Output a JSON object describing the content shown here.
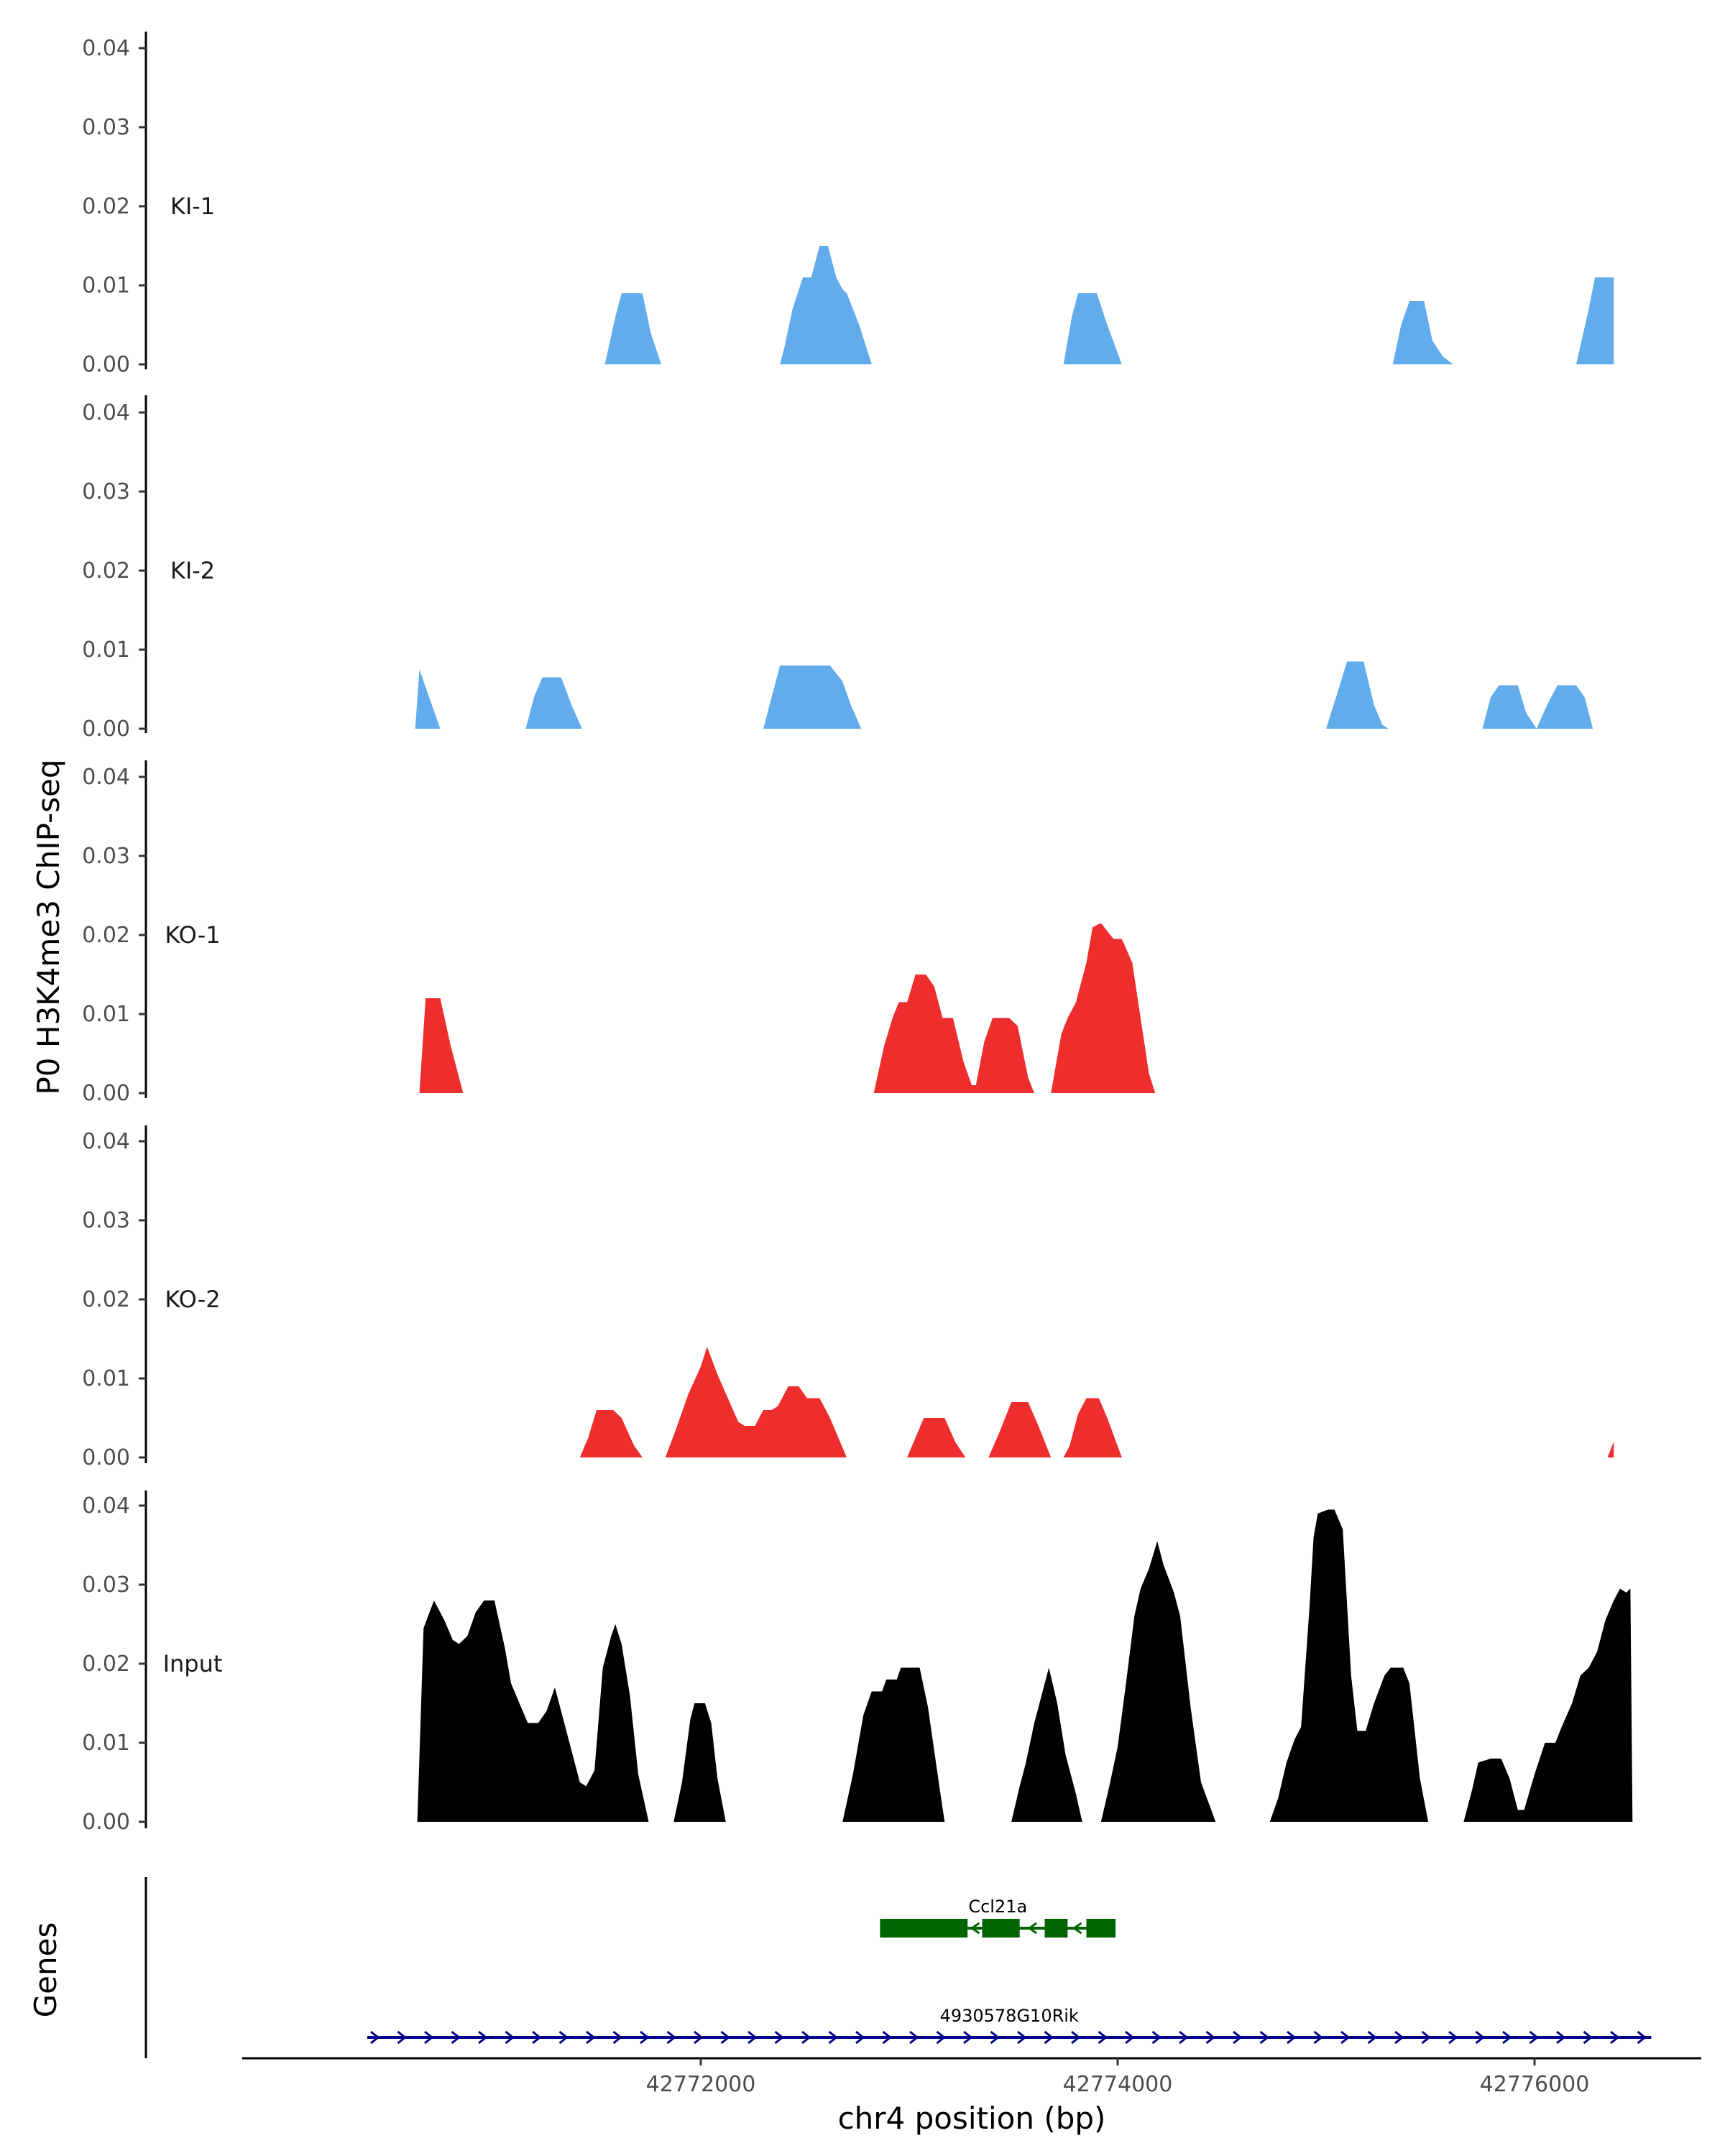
{
  "chart_data": {
    "type": "area",
    "ylabel": "P0 H3K4me3 ChIP-seq",
    "xlabel": "chr4 position (bp)",
    "gene_panel_label": "Genes",
    "xlim": [
      42769800,
      42776800
    ],
    "ylim": [
      0,
      0.04
    ],
    "x_ticks": [
      42772000,
      42774000,
      42776000
    ],
    "x_tick_labels": [
      "42772000",
      "42774000",
      "42776000"
    ],
    "y_ticks": [
      0,
      0.01,
      0.02,
      0.03,
      0.04
    ],
    "y_tick_labels": [
      "0.00",
      "0.01",
      "0.02",
      "0.03",
      "0.04"
    ],
    "colors": {
      "KI": "#63acec",
      "KO": "#ee2d2d",
      "Input": "#000000",
      "gene_Ccl21a": "#006400",
      "gene_4930578G10Rik": "#00008b"
    },
    "tracks": [
      {
        "label": "KI-1",
        "color": "#63acec",
        "points": [
          [
            42771540,
            0
          ],
          [
            42771590,
            0.006
          ],
          [
            42771620,
            0.009
          ],
          [
            42771720,
            0.009
          ],
          [
            42771760,
            0.004
          ],
          [
            42771810,
            0
          ],
          [
            42772380,
            0
          ],
          [
            42772400,
            0.002
          ],
          [
            42772440,
            0.007
          ],
          [
            42772490,
            0.011
          ],
          [
            42772530,
            0.011
          ],
          [
            42772570,
            0.015
          ],
          [
            42772610,
            0.015
          ],
          [
            42772650,
            0.011
          ],
          [
            42772680,
            0.0095
          ],
          [
            42772700,
            0.009
          ],
          [
            42772760,
            0.005
          ],
          [
            42772820,
            0
          ],
          [
            42773740,
            0
          ],
          [
            42773780,
            0.006
          ],
          [
            42773810,
            0.009
          ],
          [
            42773900,
            0.009
          ],
          [
            42773950,
            0.005
          ],
          [
            42774020,
            0
          ],
          [
            42775320,
            0
          ],
          [
            42775360,
            0.005
          ],
          [
            42775400,
            0.008
          ],
          [
            42775470,
            0.008
          ],
          [
            42775510,
            0.003
          ],
          [
            42775560,
            0.001
          ],
          [
            42775610,
            0
          ],
          [
            42776200,
            0
          ],
          [
            42776260,
            0.007
          ],
          [
            42776290,
            0.011
          ],
          [
            42776380,
            0.011
          ],
          [
            42776380,
            0
          ]
        ]
      },
      {
        "label": "KI-2",
        "color": "#63acec",
        "points": [
          [
            42770630,
            0
          ],
          [
            42770650,
            0.0075
          ],
          [
            42770750,
            0
          ],
          [
            42771160,
            0
          ],
          [
            42771200,
            0.004
          ],
          [
            42771240,
            0.0065
          ],
          [
            42771330,
            0.0065
          ],
          [
            42771380,
            0.003
          ],
          [
            42771430,
            0
          ],
          [
            42772300,
            0
          ],
          [
            42772340,
            0.004
          ],
          [
            42772380,
            0.008
          ],
          [
            42772620,
            0.008
          ],
          [
            42772680,
            0.006
          ],
          [
            42772720,
            0.003
          ],
          [
            42772770,
            0
          ],
          [
            42775000,
            0
          ],
          [
            42775060,
            0.005
          ],
          [
            42775100,
            0.0085
          ],
          [
            42775180,
            0.0085
          ],
          [
            42775230,
            0.003
          ],
          [
            42775270,
            0.0005
          ],
          [
            42775300,
            0
          ],
          [
            42775750,
            0
          ],
          [
            42775790,
            0.004
          ],
          [
            42775830,
            0.0055
          ],
          [
            42775920,
            0.0055
          ],
          [
            42775960,
            0.002
          ],
          [
            42776010,
            0
          ],
          [
            42776060,
            0.003
          ],
          [
            42776110,
            0.0055
          ],
          [
            42776200,
            0.0055
          ],
          [
            42776240,
            0.004
          ],
          [
            42776280,
            0
          ],
          [
            42776360,
            0
          ]
        ]
      },
      {
        "label": "KO-1",
        "color": "#ee2d2d",
        "points": [
          [
            42770650,
            0
          ],
          [
            42770680,
            0.012
          ],
          [
            42770750,
            0.012
          ],
          [
            42770800,
            0.006
          ],
          [
            42770860,
            0
          ],
          [
            42772830,
            0
          ],
          [
            42772880,
            0.006
          ],
          [
            42772920,
            0.0095
          ],
          [
            42772950,
            0.0115
          ],
          [
            42772990,
            0.0115
          ],
          [
            42773030,
            0.015
          ],
          [
            42773080,
            0.015
          ],
          [
            42773120,
            0.0135
          ],
          [
            42773160,
            0.0095
          ],
          [
            42773210,
            0.0095
          ],
          [
            42773260,
            0.004
          ],
          [
            42773300,
            0.001
          ],
          [
            42773320,
            0.001
          ],
          [
            42773360,
            0.0065
          ],
          [
            42773400,
            0.0095
          ],
          [
            42773480,
            0.0095
          ],
          [
            42773520,
            0.0085
          ],
          [
            42773570,
            0.002
          ],
          [
            42773600,
            0
          ],
          [
            42773680,
            0
          ],
          [
            42773730,
            0.0075
          ],
          [
            42773760,
            0.0095
          ],
          [
            42773800,
            0.0115
          ],
          [
            42773850,
            0.0165
          ],
          [
            42773880,
            0.021
          ],
          [
            42773920,
            0.0215
          ],
          [
            42773980,
            0.0195
          ],
          [
            42774020,
            0.0195
          ],
          [
            42774070,
            0.0165
          ],
          [
            42774110,
            0.0095
          ],
          [
            42774150,
            0.0025
          ],
          [
            42774180,
            0
          ]
        ]
      },
      {
        "label": "KO-2",
        "color": "#ee2d2d",
        "points": [
          [
            42771420,
            0
          ],
          [
            42771460,
            0.0025
          ],
          [
            42771500,
            0.006
          ],
          [
            42771580,
            0.006
          ],
          [
            42771620,
            0.005
          ],
          [
            42771680,
            0.0015
          ],
          [
            42771720,
            0
          ],
          [
            42771830,
            0
          ],
          [
            42771880,
            0.0035
          ],
          [
            42771940,
            0.008
          ],
          [
            42772000,
            0.0115
          ],
          [
            42772030,
            0.014
          ],
          [
            42772080,
            0.0105
          ],
          [
            42772130,
            0.0075
          ],
          [
            42772180,
            0.0045
          ],
          [
            42772210,
            0.004
          ],
          [
            42772260,
            0.004
          ],
          [
            42772300,
            0.006
          ],
          [
            42772340,
            0.006
          ],
          [
            42772370,
            0.0065
          ],
          [
            42772420,
            0.009
          ],
          [
            42772470,
            0.009
          ],
          [
            42772510,
            0.0075
          ],
          [
            42772570,
            0.0075
          ],
          [
            42772620,
            0.005
          ],
          [
            42772700,
            0
          ],
          [
            42772990,
            0
          ],
          [
            42773030,
            0.0025
          ],
          [
            42773070,
            0.005
          ],
          [
            42773170,
            0.005
          ],
          [
            42773220,
            0.002
          ],
          [
            42773270,
            0
          ],
          [
            42773380,
            0
          ],
          [
            42773430,
            0.003
          ],
          [
            42773490,
            0.007
          ],
          [
            42773570,
            0.007
          ],
          [
            42773620,
            0.004
          ],
          [
            42773680,
            0
          ],
          [
            42773740,
            0
          ],
          [
            42773770,
            0.0015
          ],
          [
            42773810,
            0.0055
          ],
          [
            42773850,
            0.0075
          ],
          [
            42773910,
            0.0075
          ],
          [
            42773950,
            0.005
          ],
          [
            42774020,
            0
          ],
          [
            42776350,
            0
          ],
          [
            42776380,
            0.002
          ],
          [
            42776380,
            0
          ]
        ]
      },
      {
        "label": "Input",
        "color": "#000000",
        "points": [
          [
            42770640,
            0
          ],
          [
            42770670,
            0.0245
          ],
          [
            42770720,
            0.028
          ],
          [
            42770770,
            0.0255
          ],
          [
            42770810,
            0.023
          ],
          [
            42770840,
            0.0225
          ],
          [
            42770880,
            0.0235
          ],
          [
            42770920,
            0.0265
          ],
          [
            42770960,
            0.028
          ],
          [
            42771010,
            0.028
          ],
          [
            42771060,
            0.022
          ],
          [
            42771090,
            0.0175
          ],
          [
            42771130,
            0.015
          ],
          [
            42771170,
            0.0125
          ],
          [
            42771220,
            0.0125
          ],
          [
            42771260,
            0.014
          ],
          [
            42771300,
            0.017
          ],
          [
            42771340,
            0.013
          ],
          [
            42771380,
            0.009
          ],
          [
            42771420,
            0.005
          ],
          [
            42771450,
            0.0045
          ],
          [
            42771490,
            0.0065
          ],
          [
            42771530,
            0.0195
          ],
          [
            42771570,
            0.0235
          ],
          [
            42771590,
            0.025
          ],
          [
            42771620,
            0.0225
          ],
          [
            42771660,
            0.016
          ],
          [
            42771700,
            0.006
          ],
          [
            42771750,
            0
          ],
          [
            42771870,
            0
          ],
          [
            42771910,
            0.005
          ],
          [
            42771950,
            0.013
          ],
          [
            42771970,
            0.015
          ],
          [
            42772020,
            0.015
          ],
          [
            42772050,
            0.0125
          ],
          [
            42772080,
            0.0055
          ],
          [
            42772120,
            0
          ],
          [
            42772680,
            0
          ],
          [
            42772730,
            0.006
          ],
          [
            42772780,
            0.0135
          ],
          [
            42772820,
            0.0165
          ],
          [
            42772870,
            0.0165
          ],
          [
            42772890,
            0.018
          ],
          [
            42772940,
            0.018
          ],
          [
            42772960,
            0.0195
          ],
          [
            42773050,
            0.0195
          ],
          [
            42773090,
            0.0145
          ],
          [
            42773150,
            0.0035
          ],
          [
            42773170,
            0
          ],
          [
            42773490,
            0
          ],
          [
            42773530,
            0.0045
          ],
          [
            42773560,
            0.0075
          ],
          [
            42773600,
            0.0125
          ],
          [
            42773640,
            0.0165
          ],
          [
            42773670,
            0.0195
          ],
          [
            42773710,
            0.015
          ],
          [
            42773750,
            0.0085
          ],
          [
            42773800,
            0.0035
          ],
          [
            42773830,
            0
          ],
          [
            42773920,
            0
          ],
          [
            42773960,
            0.0045
          ],
          [
            42774000,
            0.0095
          ],
          [
            42774040,
            0.0175
          ],
          [
            42774080,
            0.026
          ],
          [
            42774110,
            0.0295
          ],
          [
            42774150,
            0.032
          ],
          [
            42774190,
            0.0355
          ],
          [
            42774220,
            0.0325
          ],
          [
            42774270,
            0.029
          ],
          [
            42774300,
            0.026
          ],
          [
            42774350,
            0.0145
          ],
          [
            42774400,
            0.005
          ],
          [
            42774470,
            0
          ],
          [
            42774730,
            0
          ],
          [
            42774770,
            0.003
          ],
          [
            42774810,
            0.0075
          ],
          [
            42774850,
            0.0105
          ],
          [
            42774880,
            0.012
          ],
          [
            42774920,
            0.027
          ],
          [
            42774940,
            0.036
          ],
          [
            42774960,
            0.039
          ],
          [
            42775010,
            0.0395
          ],
          [
            42775040,
            0.0395
          ],
          [
            42775080,
            0.037
          ],
          [
            42775120,
            0.0185
          ],
          [
            42775150,
            0.0115
          ],
          [
            42775190,
            0.0115
          ],
          [
            42775230,
            0.015
          ],
          [
            42775280,
            0.0185
          ],
          [
            42775310,
            0.0195
          ],
          [
            42775370,
            0.0195
          ],
          [
            42775400,
            0.0175
          ],
          [
            42775450,
            0.0055
          ],
          [
            42775490,
            0
          ],
          [
            42775660,
            0
          ],
          [
            42775700,
            0.004
          ],
          [
            42775730,
            0.0075
          ],
          [
            42775790,
            0.008
          ],
          [
            42775840,
            0.008
          ],
          [
            42775880,
            0.0055
          ],
          [
            42775920,
            0.0015
          ],
          [
            42775950,
            0.0015
          ],
          [
            42776000,
            0.006
          ],
          [
            42776050,
            0.01
          ],
          [
            42776100,
            0.01
          ],
          [
            42776130,
            0.012
          ],
          [
            42776180,
            0.015
          ],
          [
            42776220,
            0.0185
          ],
          [
            42776260,
            0.0195
          ],
          [
            42776300,
            0.0215
          ],
          [
            42776340,
            0.0255
          ],
          [
            42776380,
            0.028
          ],
          [
            42776410,
            0.0295
          ],
          [
            42776440,
            0.029
          ],
          [
            42776460,
            0.0295
          ],
          [
            42776470,
            0
          ]
        ]
      }
    ],
    "genes": [
      {
        "name": "Ccl21a",
        "start": 42772860,
        "end": 42773990,
        "exons": [
          [
            42772860,
            42773280
          ],
          [
            42773350,
            42773530
          ],
          [
            42773650,
            42773760
          ],
          [
            42773850,
            42773990
          ]
        ]
      },
      {
        "name": "4930578G10Rik",
        "start": 42770400,
        "end": 42776560,
        "exons": []
      }
    ]
  }
}
